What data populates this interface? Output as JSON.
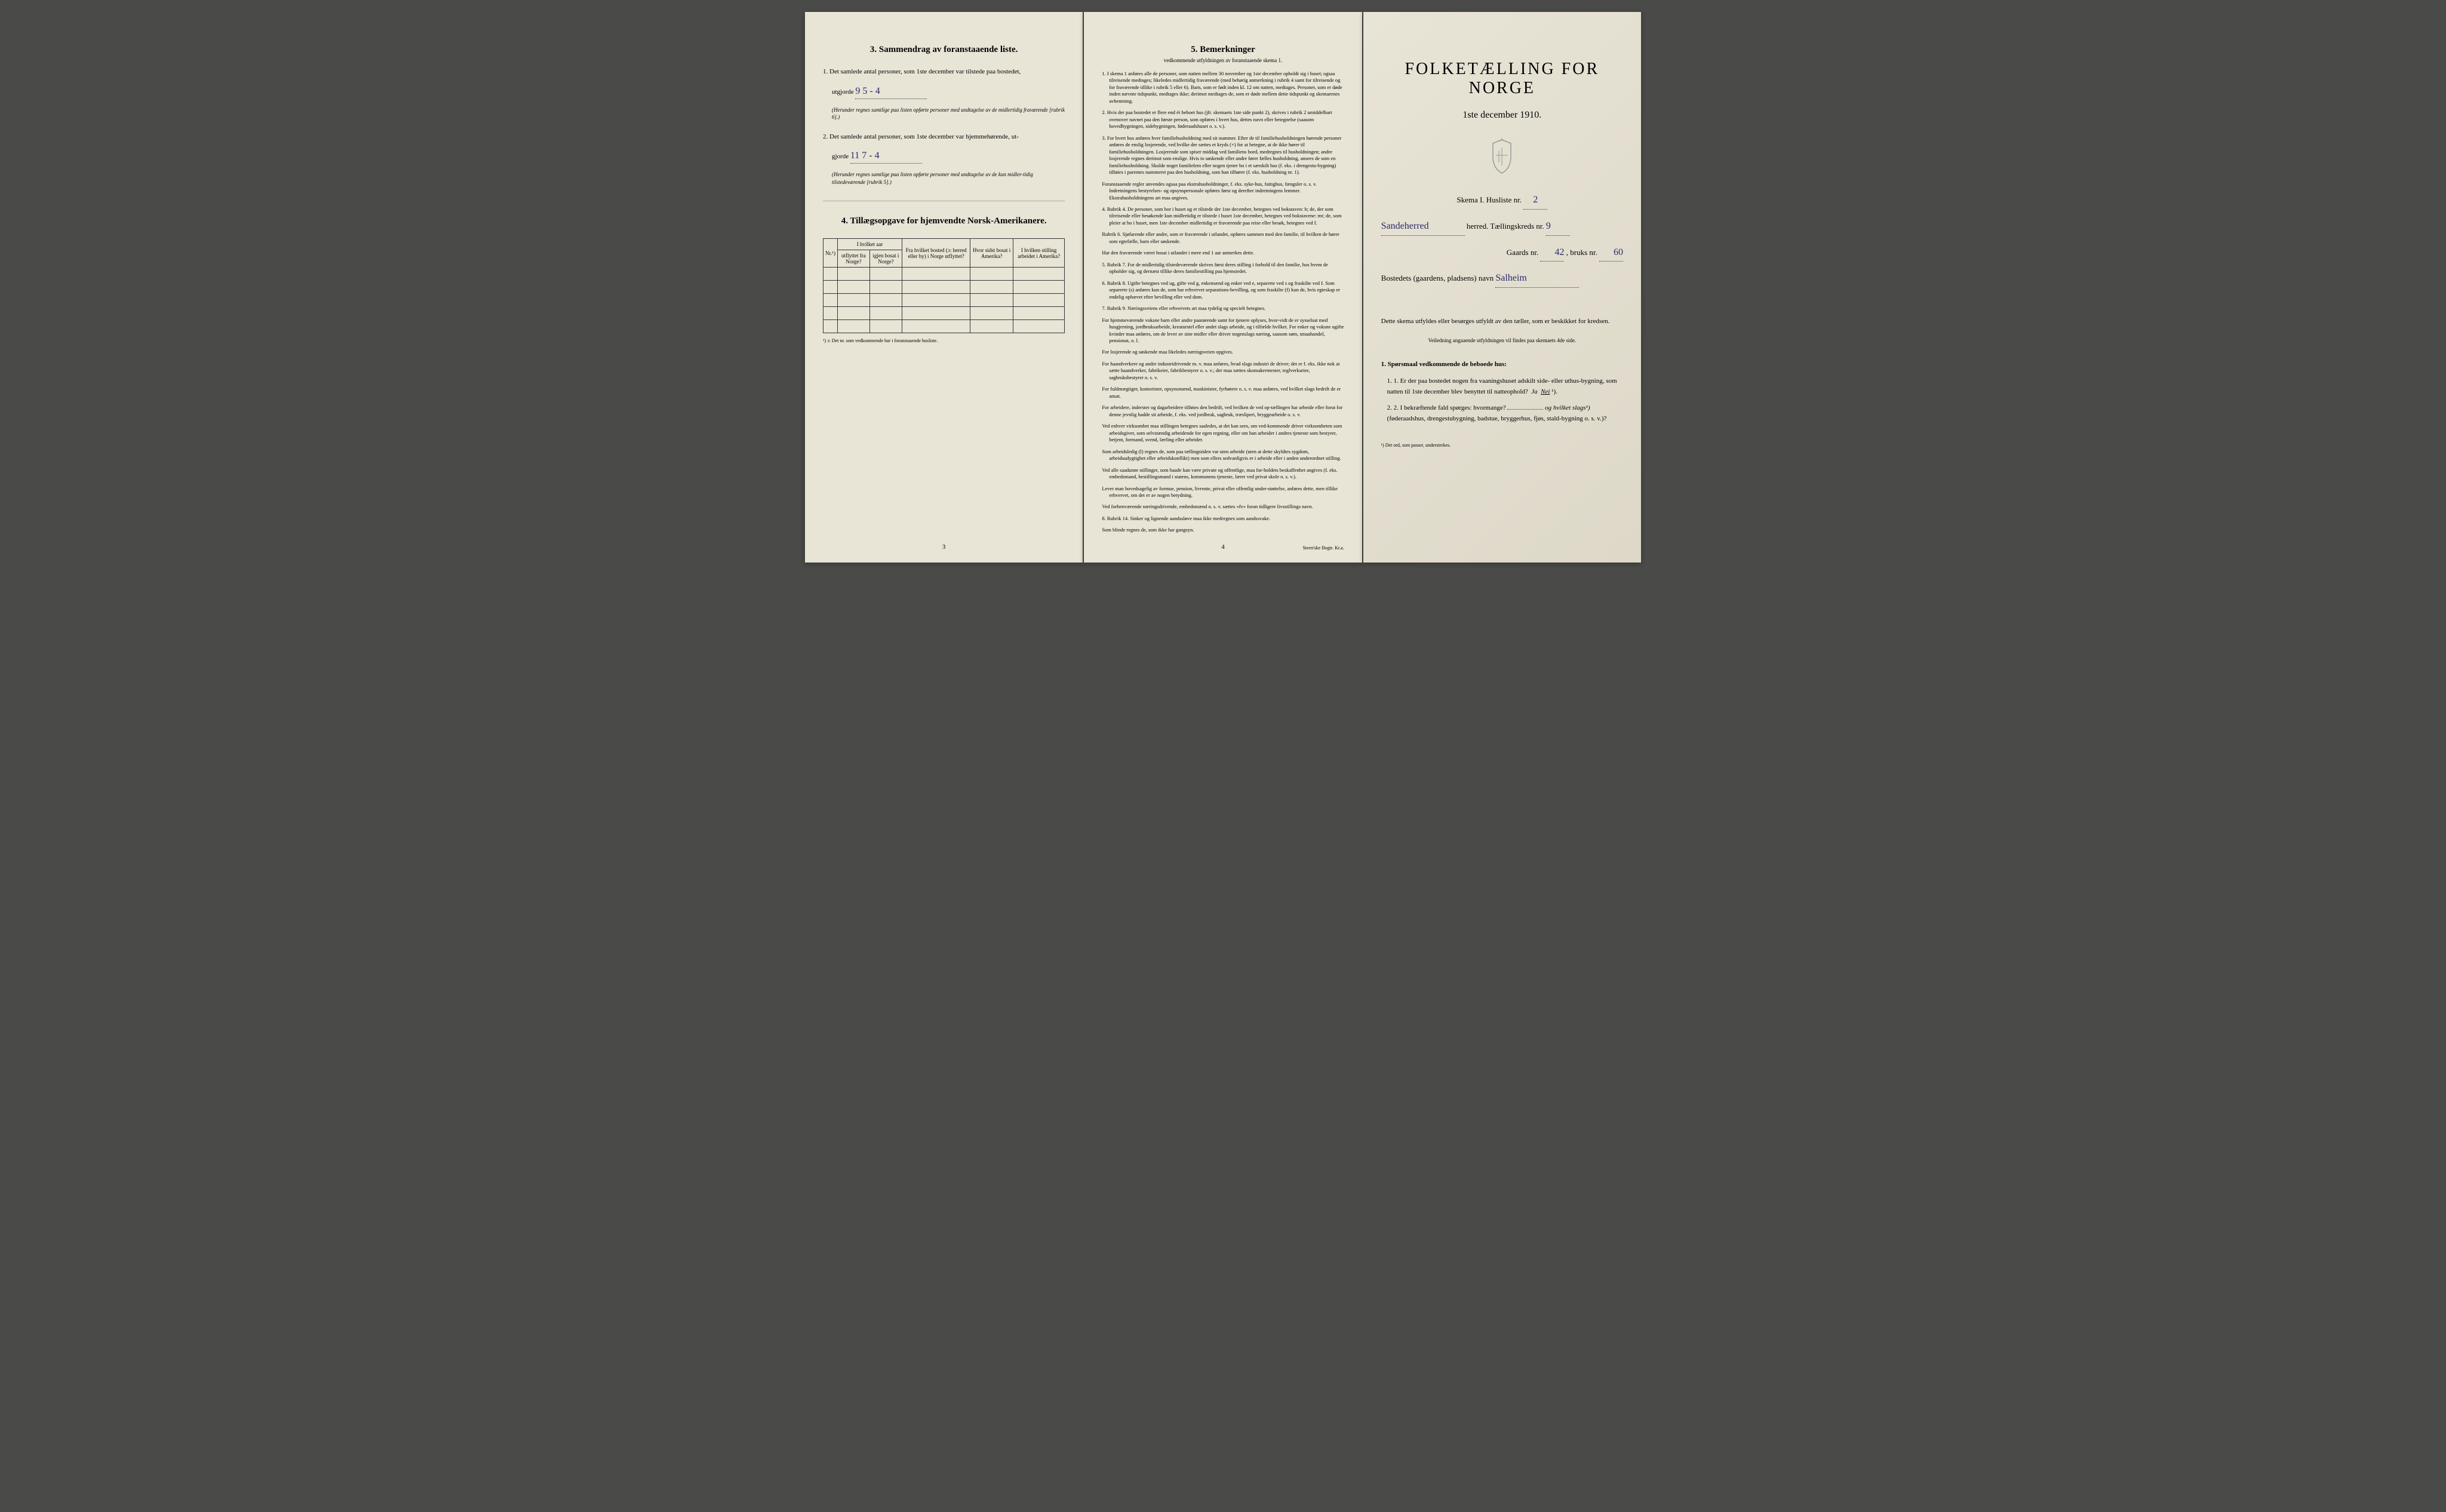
{
  "page1": {
    "section3_title": "3.   Sammendrag av foranstaaende liste.",
    "item1_text": "1.  Det samlede antal personer, som 1ste december var tilstede paa bostedet,",
    "item1_label": "utgjorde",
    "item1_value": "9    5 - 4",
    "item1_note": "(Herunder regnes samtlige paa listen opførte personer med undtagelse av de midlertidig fraværende [rubrik 6].)",
    "item2_text": "2.  Det samlede antal personer, som 1ste december var hjemmehørende, ut-",
    "item2_label": "gjorde",
    "item2_value": "11    7 - 4",
    "item2_note": "(Herunder regnes samtlige paa listen opførte personer med undtagelse av de kun midler-tidig tilstedeværende [rubrik 5].)",
    "section4_title": "4.  Tillægsopgave for hjemvendte Norsk-Amerikanere.",
    "table_headers": {
      "col1": "Nr.¹)",
      "col2_top": "I hvilket aar",
      "col2a": "utflyttet fra Norge?",
      "col2b": "igjen bosat i Norge?",
      "col3": "Fra hvilket bosted (ɔ: herred eller by) i Norge utflyttet?",
      "col4": "Hvor sidst bosat i Amerika?",
      "col5": "I hvilken stilling arbeidet i Amerika?"
    },
    "table_footnote": "¹) ɔ: Det nr. som vedkommende har i foranstaaende husliste.",
    "page_num": "3"
  },
  "page2": {
    "section5_title": "5.   Bemerkninger",
    "section5_subtitle": "vedkommende utfyldningen av foranstaaende skema 1.",
    "remarks": [
      "1.  I skema 1 anføres alle de personer, som natten mellem 30 november og 1ste december opholdt sig i huset; ogsaa tilreisende medtages; likeledes midlertidig fraværende (med behørig anmerkning i rubrik 4 samt for tilreisende og for fraværende tillike i rubrik 5 eller 6). Barn, som er født inden kl. 12 om natten, medtages. Personer, som er døde inden nævnte tidspunkt, medtages ikke; derimot medtages de, som er døde mellem dette tidspunkt og skemaernes avhentning.",
      "2.  Hvis der paa bostedet er flere end ét beboet hus (jfr. skemaets 1ste side punkt 2), skrives i rubrik 2 umiddelbart ovenover navnet paa den første person, som opføres i hvert hus, dettes navn eller betegnelse (saasom hovedbygningen, sidebygningen, føderaadshuset o. s. v.).",
      "3.  For hvert hus anføres hver familiehusholdning med sit nummer. Efter de til familiehusholdningen hørende personer anføres de enslig losjerende, ved hvilke der sættes et kryds (×) for at betegne, at de ikke hører til familiehusholdningen. Losjerende som spiser middag ved familiens bord, medregnes til husholdningen; andre losjerende regnes derimot som enslige. Hvis to søskende eller andre fører fælles husholdning, ansees de som en familiehusholdning. Skulde noget familielem eller nogen tjener bo i et særskilt hus (f. eks. i drengestu-bygning) tilføies i parentes nummeret paa den husholdning, som han tilhører (f. eks. husholdning nr. 1).",
      "      Foranstaaende regler anvendes ogsaa paa ekstrahusholdninger, f. eks. syke-hus, fattighus, fængsler o. s. v. Indretningens bestyrelses- og opsynspersonale opføres først og derefter indretningens lemmer. Ekstrahusholdningens art maa angives.",
      "4.  Rubrik 4.  De personer, som bor i huset og er tilstede der 1ste december, betegnes ved bokstaven: b; de, der som tilreisende eller besøkende kun midlertidig er tilstede i huset 1ste december, betegnes ved bokstavene: mt; de, som pleier at bo i huset, men 1ste december midlertidig er fraværende paa reise eller besøk, betegnes ved f.",
      "      Rubrik 6.  Sjøfarende eller andre, som er fraværende i utlandet, opføres sammen med den familie, til hvilken de hører som egtefælle, barn eller søskende.",
      "      Har den fraværende været bosat i utlandet i mere end 1 aar anmerkes dette.",
      "5.  Rubrik 7.  For de midlertidig tilstedeværende skrives først deres stilling i forhold til den familie, hos hvem de opholder sig, og dernæst tillike deres familiestilling paa hjemstedet.",
      "6.  Rubrik 8.  Ugifte betegnes ved ug, gifte ved g, enkemænd og enker ved e, separerte ved s og fraskilte ved f. Som separerte (s) anføres kun de, som har erhvervet separations-bevilling, og som fraskilte (f) kun de, hvis egteskap er endelig ophævet efter bevilling eller ved dom.",
      "7.  Rubrik 9.  Næringsveiens eller erhvervets art maa tydelig og specielt betegnes.",
      "      For hjemmeværende voksne barn eller andre paarørende samt for tjenere oplyses, hvor-vidt de er sysselsat med husgjerning, jordbruksarbeide, kreaturstel eller andet slags arbeide, og i tilfælde hvilket. For enker og voksne ugifte kvinder maa anføres, om de lever av sine midler eller driver nogenslags næring, saasom søm, smaahandel, pensionat, o. l.",
      "      For losjerende og søskende maa likeledes næringsveien opgives.",
      "      For haandverkere og andre industridrivende m. v. maa anføres, hvad slags industri de driver; det er f. eks. ikke nok at sætte haandverker, fabrikeier, fabrikbestyrer o. s. v.; der maa sættes skomakermester, teglverkseier, sagbruksbestyrer o. s. v.",
      "      For fuldmægtiger, kontorister, opsynsmænd, maskinister, fyrbøtere o. s. v. maa anføres, ved hvilket slags bedrift de er ansat.",
      "      For arbeidere, inderster og dagarbeidere tilføies den bedrift, ved hvilken de ved op-tællingen har arbeide eller forut for denne jevnlig hadde sit arbeide, f. eks. ved jordbruk, sagbruk, træsliperi, bryggearbeide o. s. v.",
      "      Ved enhver virksomhet maa stillingen betegnes saaledes, at det kan sees, om ved-kommende driver virksomheten som arbeidsgiver, som selvstændig arbeidende for egen regning, eller om han arbeider i andres tjeneste som bestyrer, betjent, formand, svend, lærling eller arbeider.",
      "      Som arbeidsledig (l) regnes de, som paa tællingstiden var uten arbeide (uten at dette skyldtes sygdom, arbeidsudygtighet eller arbeidskonflikt) men som ellers sedvanligvis er i arbeide eller i anden underordnet stilling.",
      "      Ved alle saadanne stillinger, som baade kan være private og offentlige, maa for-holdets beskaffenhet angives (f. eks. embedsmand, bestillingsmand i statens, kommunens tjeneste, lærer ved privat skole o. s. v.).",
      "      Lever man hovedsagelig av formue, pension, livrente, privat eller offentlig under-støttelse, anføres dette, men tillike erhvervet, om det er av nogen betydning.",
      "      Ved forhenværende næringsdrivende, embedsmænd o. s. v. sættes «fv» foran tidligere livsstillings navn.",
      "8.  Rubrik 14.  Sinker og lignende aandssløve maa ikke medregnes som aandssvake.",
      "      Som blinde regnes de, som ikke har gangsyn."
    ],
    "page_num": "4",
    "printer": "Steen'ske Bogtr. Kr.a."
  },
  "page3": {
    "main_title": "FOLKETÆLLING FOR NORGE",
    "date": "1ste december 1910.",
    "skema_label": "Skema I.  Husliste nr.",
    "husliste_nr": "2",
    "herred_value": "Sandeherred",
    "herred_label": "herred.  Tællingskreds nr.",
    "kreds_nr": "9",
    "gaards_label": "Gaards nr.",
    "gaards_nr": "42",
    "bruks_label": ", bruks nr.",
    "bruks_nr": "60",
    "bosted_label": "Bostedets (gaardens, pladsens) navn",
    "bosted_value": "Salheim",
    "instruction": "Dette skema utfyldes eller besørges utfyldt av den tæller, som er beskikket for kredsen.",
    "instruction_sub": "Veiledning angaaende utfyldningen vil findes paa skemaets 4de side.",
    "q_header": "1. Spørsmaal vedkommende de beboede hus:",
    "q1": "1.  Er der paa bostedet nogen fra vaaningshuset adskilt side- eller uthus-bygning, som natten til 1ste december blev benyttet til natteophold?",
    "q1_ja": "Ja",
    "q1_nei": "Nei",
    "q1_foot": "¹).",
    "q2": "2.  I bekræftende fald spørges: hvormange?",
    "q2_mid": "og hvilket slags¹)",
    "q2_sub": "(føderaadshus, drengestubygning, badstue, bryggerhus, fjøs, stald-bygning o. s. v.)?",
    "footnote": "¹) Det ord, som passer, understrekes."
  }
}
